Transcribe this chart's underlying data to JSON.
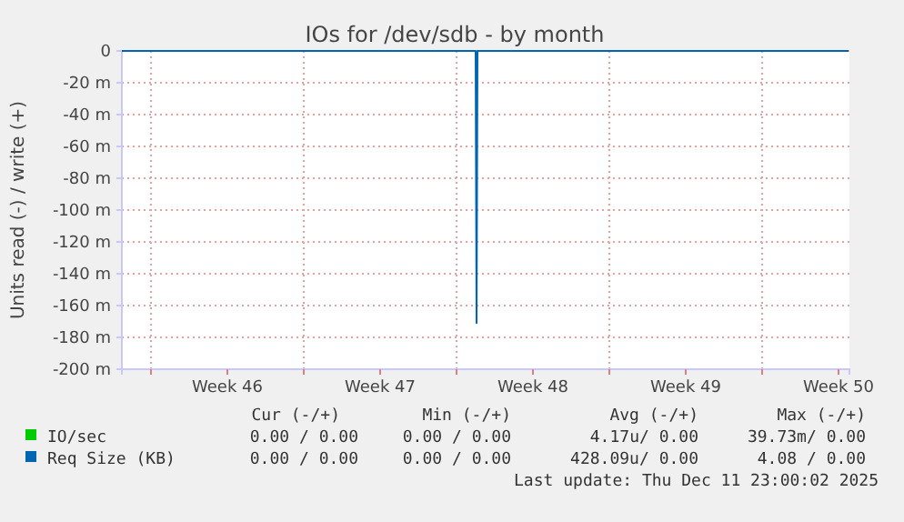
{
  "chart_data": {
    "type": "line",
    "title": "IOs for /dev/sdb - by month",
    "ylabel": "Units read (-) / write (+)",
    "xlim": [
      "2025-11-08T16:00",
      "2025-12-12T00:00"
    ],
    "xticks": [
      {
        "value": "2025-11-10T00:00",
        "label": null
      },
      {
        "value": "2025-11-13T12:00",
        "label": "Week 46"
      },
      {
        "value": "2025-11-17T00:00",
        "label": null
      },
      {
        "value": "2025-11-20T12:00",
        "label": "Week 47"
      },
      {
        "value": "2025-11-24T00:00",
        "label": null
      },
      {
        "value": "2025-11-27T12:00",
        "label": "Week 48"
      },
      {
        "value": "2025-12-01T00:00",
        "label": null
      },
      {
        "value": "2025-12-04T12:00",
        "label": "Week 49"
      },
      {
        "value": "2025-12-08T00:00",
        "label": null
      },
      {
        "value": "2025-12-11T12:00",
        "label": "Week 50"
      }
    ],
    "ylim": [
      -200,
      0
    ],
    "yticks": [
      {
        "value": 0,
        "label": "0"
      },
      {
        "value": -20,
        "label": "-20 m"
      },
      {
        "value": -40,
        "label": "-40 m"
      },
      {
        "value": -60,
        "label": "-60 m"
      },
      {
        "value": -80,
        "label": "-80 m"
      },
      {
        "value": -100,
        "label": "-100 m"
      },
      {
        "value": -120,
        "label": "-120 m"
      },
      {
        "value": -140,
        "label": "-140 m"
      },
      {
        "value": -160,
        "label": "-160 m"
      },
      {
        "value": -180,
        "label": "-180 m"
      },
      {
        "value": -200,
        "label": "-200 m"
      }
    ],
    "x": [
      "2025-11-08T16:00",
      "2025-11-24T21:00",
      "2025-11-24T22:00",
      "2025-11-24T23:00",
      "2025-12-11T23:00"
    ],
    "series": [
      {
        "name": "IO/sec",
        "color": "#00cc00",
        "values": [
          null,
          null,
          null,
          null,
          null
        ]
      },
      {
        "name": "Req Size (KB)",
        "color": "#0066b3",
        "values": [
          0,
          0,
          -171,
          0,
          0
        ]
      }
    ],
    "grid": true,
    "legend": "bottom",
    "marker": "none",
    "line_style": "solid",
    "annotations": [
      "Cur (-/+)",
      "Min (-/+)",
      "Avg (-/+)",
      "Max (-/+)",
      "0.00 / 0.00",
      "0.00 / 0.00",
      "4.17u/ 0.00",
      "39.73m/ 0.00",
      "0.00 / 0.00",
      "0.00 / 0.00",
      "428.09u/ 0.00",
      "4.08 / 0.00",
      "Last update: Thu Dec 11 23:00:02 2025"
    ]
  }
}
